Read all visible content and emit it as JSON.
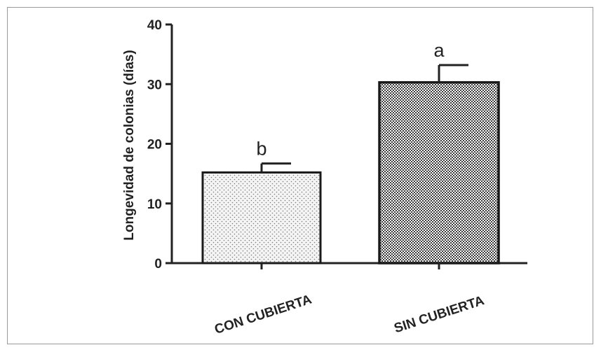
{
  "chart_data": {
    "type": "bar",
    "title": "",
    "xlabel": "",
    "ylabel": "Longevidad de colonias (días)",
    "ylim": [
      0,
      40
    ],
    "yticks": [
      0,
      10,
      20,
      30,
      40
    ],
    "categories": [
      "CON CUBIERTA",
      "SIN CUBIERTA"
    ],
    "values": [
      15.2,
      30.3
    ],
    "errors": [
      1.5,
      2.9
    ],
    "significance_letters": [
      "b",
      "a"
    ],
    "bar_patterns": [
      "fine-dots",
      "checkerboard"
    ],
    "grid": false,
    "legend": "none"
  },
  "colors": {
    "axis": "#222222",
    "bar_outline": "#1a1a1a",
    "bar1_fill_base": "#f4f4f4",
    "bar1_dot": "#7a7a7a",
    "bar2_fill_base": "#ffffff",
    "bar2_check": "#3c3c3c"
  }
}
